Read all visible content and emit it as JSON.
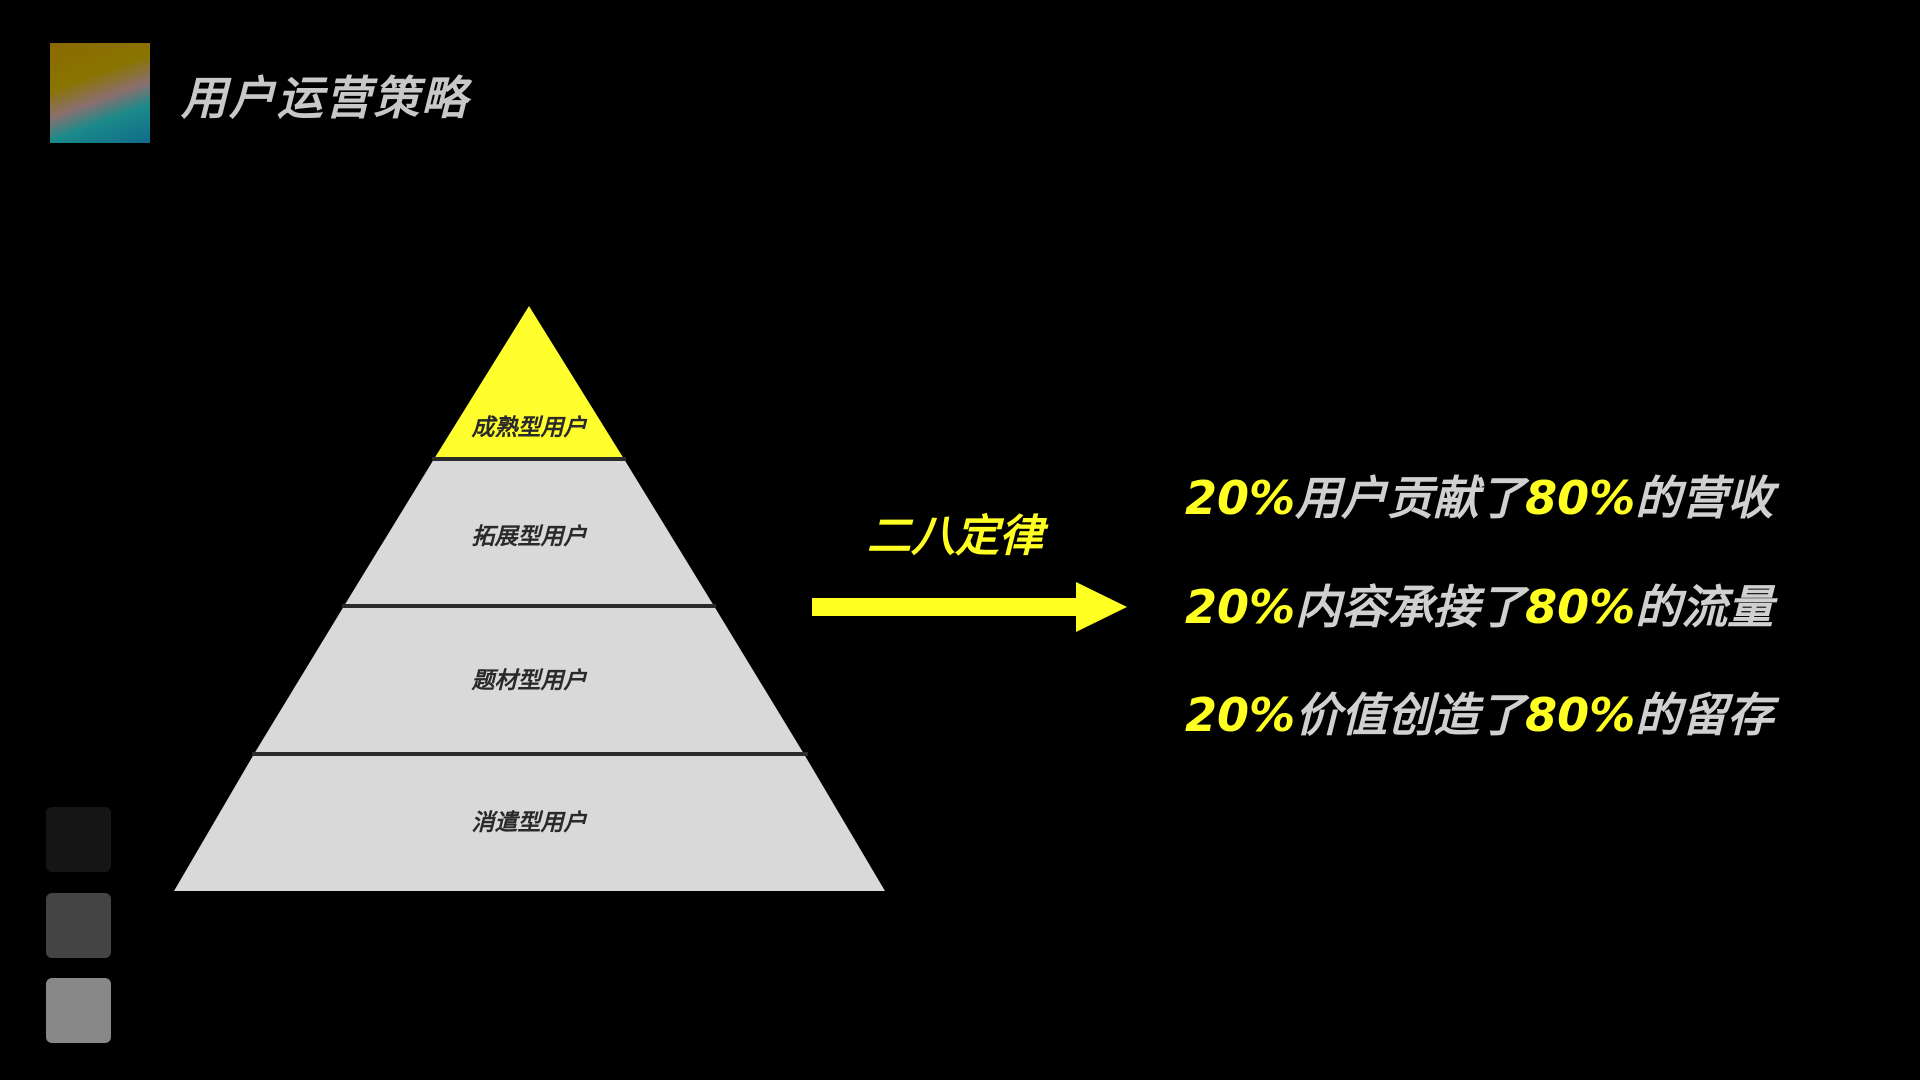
{
  "header": {
    "title": "用户运营策略",
    "logo": "gradient-square-logo"
  },
  "pyramid": {
    "levels": [
      {
        "label": "成熟型用户",
        "color": "#ffff2e"
      },
      {
        "label": "拓展型用户",
        "color": "#d9d9d9"
      },
      {
        "label": "题材型用户",
        "color": "#d9d9d9"
      },
      {
        "label": "消遣型用户",
        "color": "#d9d9d9"
      }
    ]
  },
  "arrow": {
    "label": "二八定律",
    "color": "#ffff22"
  },
  "statements": [
    {
      "pct1": "20%",
      "mid": "用户贡献了",
      "pct2": "80%",
      "end": "的营收"
    },
    {
      "pct1": "20%",
      "mid": "内容承接了",
      "pct2": "80%",
      "end": "的流量"
    },
    {
      "pct1": "20%",
      "mid": "价值创造了",
      "pct2": "80%",
      "end": "的留存"
    }
  ],
  "swatches": [
    "#151515",
    "#444444",
    "#888888"
  ]
}
